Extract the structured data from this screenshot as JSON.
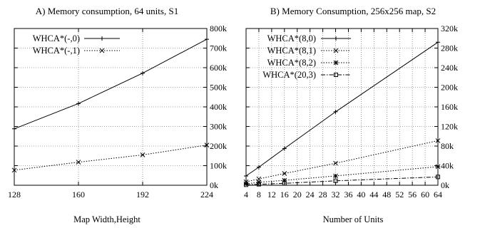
{
  "chart_data": [
    {
      "type": "line",
      "title": "A) Memory consumption, 64 units, S1",
      "xlabel": "Map Width,Height",
      "ylabel": "",
      "x_ticks": [
        128,
        160,
        192,
        224
      ],
      "x_tick_labels": [
        "128",
        "160",
        "192",
        "224"
      ],
      "y_ticks": [
        0,
        100000,
        200000,
        300000,
        400000,
        500000,
        600000,
        700000,
        800000
      ],
      "y_tick_labels": [
        "0k",
        "100k",
        "200k",
        "300k",
        "400k",
        "500k",
        "600k",
        "700k",
        "800k"
      ],
      "y_axis_side": "right",
      "xlim": [
        128,
        224
      ],
      "ylim": [
        0,
        800000
      ],
      "grid": true,
      "legend_position": "top-left",
      "series": [
        {
          "name": "WHCA*(-,0)",
          "style": "solid",
          "marker": "plus",
          "x": [
            128,
            160,
            192,
            224
          ],
          "y": [
            288000,
            417000,
            572000,
            745000
          ]
        },
        {
          "name": "WHCA*(-,1)",
          "style": "dotted",
          "marker": "cross",
          "x": [
            128,
            160,
            192,
            224
          ],
          "y": [
            77000,
            118000,
            155000,
            205000
          ]
        }
      ]
    },
    {
      "type": "line",
      "title": "B) Memory Consumption, 256x256 map, S2",
      "xlabel": "Number of Units",
      "ylabel": "",
      "x_ticks": [
        4,
        8,
        12,
        16,
        20,
        24,
        28,
        32,
        36,
        40,
        44,
        48,
        52,
        56,
        60,
        64
      ],
      "x_tick_labels": [
        "4",
        "8",
        "12",
        "16",
        "20",
        "24",
        "28",
        "32",
        "36",
        "40",
        "44",
        "48",
        "52",
        "56",
        "60",
        "64"
      ],
      "y_ticks": [
        0,
        40000,
        80000,
        120000,
        160000,
        200000,
        240000,
        280000,
        320000
      ],
      "y_tick_labels": [
        "0k",
        "40k",
        "80k",
        "120k",
        "160k",
        "200k",
        "240k",
        "280k",
        "320k"
      ],
      "y_axis_side": "right",
      "xlim": [
        4,
        64
      ],
      "ylim": [
        0,
        320000
      ],
      "grid": true,
      "legend_position": "top-left",
      "series": [
        {
          "name": "WHCA*(8,0)",
          "style": "solid",
          "marker": "plus",
          "x": [
            4,
            8,
            16,
            32,
            64
          ],
          "y": [
            19000,
            37000,
            75000,
            150000,
            292000
          ]
        },
        {
          "name": "WHCA*(8,1)",
          "style": "dotted",
          "marker": "cross",
          "x": [
            4,
            8,
            16,
            32,
            64
          ],
          "y": [
            7000,
            13000,
            24000,
            45000,
            91000
          ]
        },
        {
          "name": "WHCA*(8,2)",
          "style": "dotted",
          "marker": "star",
          "x": [
            4,
            8,
            16,
            32,
            64
          ],
          "y": [
            3000,
            6000,
            10000,
            19000,
            38000
          ]
        },
        {
          "name": "WHCA*(20,3)",
          "style": "dashdot",
          "marker": "square",
          "x": [
            4,
            8,
            16,
            32,
            64
          ],
          "y": [
            1000,
            2000,
            4000,
            9000,
            17000
          ]
        }
      ]
    }
  ]
}
